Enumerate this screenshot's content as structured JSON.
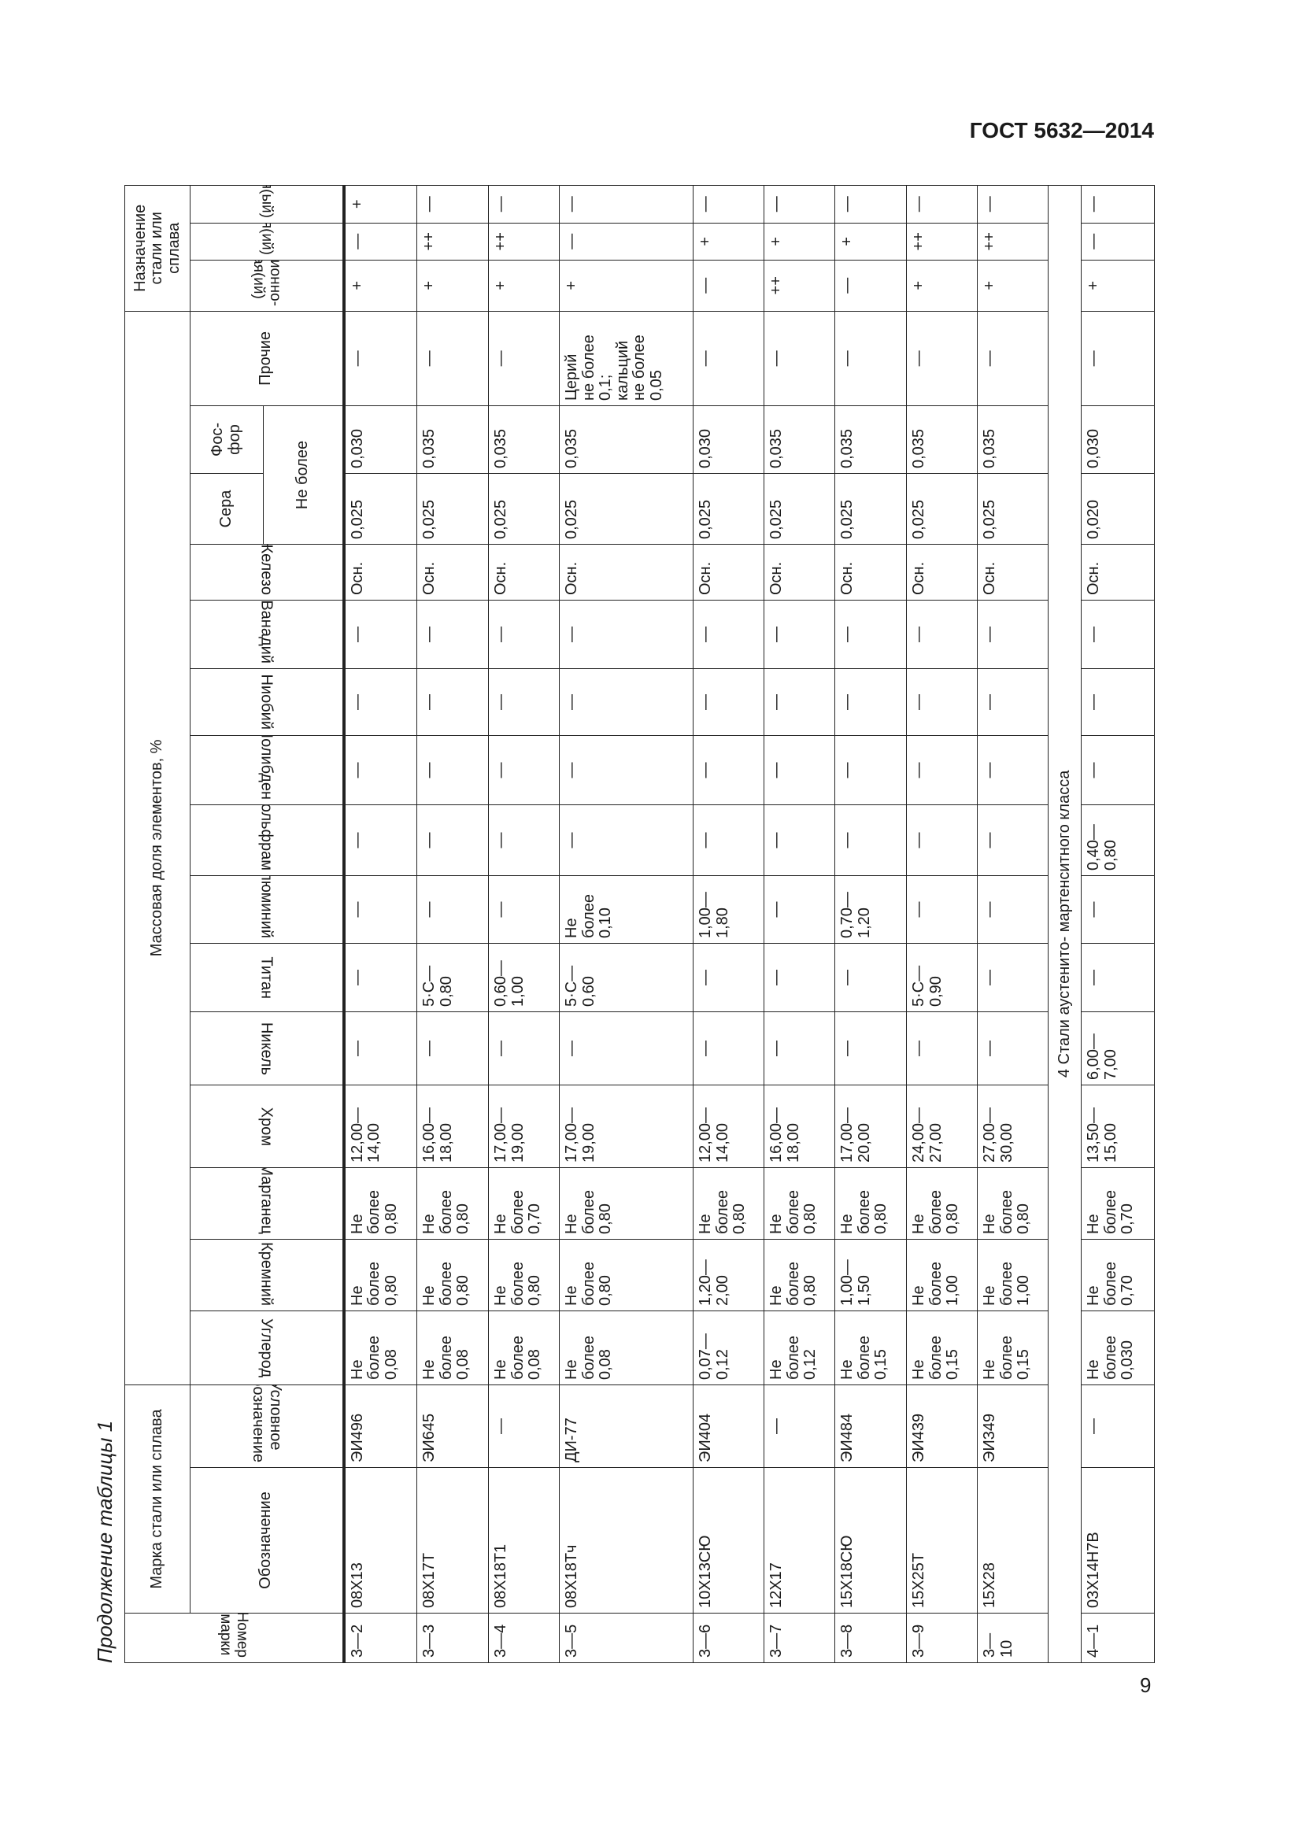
{
  "header": {
    "doc_title": "ГОСТ 5632—2014",
    "page_number": "9",
    "caption": "Продолжение таблицы 1"
  },
  "table": {
    "group_headers": {
      "number": "Номер марки",
      "grade": "Марка стали или сплава",
      "mass_fraction": "Массовая доля элементов, %",
      "purpose": "Назначение стали или сплава"
    },
    "columns": {
      "designation": "Обозначение",
      "conventional": "Условное\nобозначение",
      "carbon": "Углерод",
      "silicon": "Кремний",
      "manganese": "Марганец",
      "chromium": "Хром",
      "nickel": "Никель",
      "titanium": "Титан",
      "aluminium": "Алюминий",
      "tungsten": "Вольфрам",
      "molybdenum": "Молибден",
      "niobium": "Ниобий",
      "vanadium": "Ванадий",
      "iron": "Железо",
      "sulfur": "Сера",
      "phosphorus": "Фос-\nфор",
      "max_note": "Не более",
      "other": "Прочие",
      "corrosion": "Коррозионно-\nстойкая(ий)",
      "heat_resistant": "Жаростойкая(ий)",
      "heat_proof": "Жаропрочная(ый)"
    },
    "rows_class3": [
      [
        "3—2",
        "08Х13",
        "ЭИ496",
        "Не\nболее\n0,08",
        "Не\nболее\n0,80",
        "Не\nболее\n0,80",
        "12,00—\n14,00",
        "—",
        "—",
        "—",
        "—",
        "—",
        "—",
        "—",
        "Осн.",
        "0,025",
        "0,030",
        "—",
        "+",
        "—",
        "+"
      ],
      [
        "3—3",
        "08Х17Т",
        "ЭИ645",
        "Не\nболее\n0,08",
        "Не\nболее\n0,80",
        "Не\nболее\n0,80",
        "16,00—\n18,00",
        "—",
        "5·С—\n0,80",
        "—",
        "—",
        "—",
        "—",
        "—",
        "Осн.",
        "0,025",
        "0,035",
        "—",
        "+",
        "++",
        "—"
      ],
      [
        "3—4",
        "08Х18Т1",
        "—",
        "Не\nболее\n0,08",
        "Не\nболее\n0,80",
        "Не\nболее\n0,70",
        "17,00—\n19,00",
        "—",
        "0,60—\n1,00",
        "—",
        "—",
        "—",
        "—",
        "—",
        "Осн.",
        "0,025",
        "0,035",
        "—",
        "+",
        "++",
        "—"
      ],
      [
        "3—5",
        "08Х18Тч",
        "ДИ-77",
        "Не\nболее\n0,08",
        "Не\nболее\n0,80",
        "Не\nболее\n0,80",
        "17,00—\n19,00",
        "—",
        "5·С—\n0,60",
        "Не\nболее\n0,10",
        "—",
        "—",
        "—",
        "—",
        "Осн.",
        "0,025",
        "0,035",
        "Церий\nне более\n0,1;\nкальций\nне более\n0,05",
        "+",
        "—",
        "—"
      ],
      [
        "3—6",
        "10Х13СЮ",
        "ЭИ404",
        "0,07—\n0,12",
        "1,20—\n2,00",
        "Не\nболее\n0,80",
        "12,00—\n14,00",
        "—",
        "—",
        "1,00—\n1,80",
        "—",
        "—",
        "—",
        "—",
        "Осн.",
        "0,025",
        "0,030",
        "—",
        "—",
        "+",
        "—"
      ],
      [
        "3—7",
        "12Х17",
        "—",
        "Не\nболее\n0,12",
        "Не\nболее\n0,80",
        "Не\nболее\n0,80",
        "16,00—\n18,00",
        "—",
        "—",
        "—",
        "—",
        "—",
        "—",
        "—",
        "Осн.",
        "0,025",
        "0,035",
        "—",
        "++",
        "+",
        "—"
      ],
      [
        "3—8",
        "15Х18СЮ",
        "ЭИ484",
        "Не\nболее\n0,15",
        "1,00—\n1,50",
        "Не\nболее\n0,80",
        "17,00—\n20,00",
        "—",
        "—",
        "0,70—\n1,20",
        "—",
        "—",
        "—",
        "—",
        "Осн.",
        "0,025",
        "0,035",
        "—",
        "—",
        "+",
        "—"
      ],
      [
        "3—9",
        "15Х25Т",
        "ЭИ439",
        "Не\nболее\n0,15",
        "Не\nболее\n1,00",
        "Не\nболее\n0,80",
        "24,00—\n27,00",
        "—",
        "5·С—\n0,90",
        "—",
        "—",
        "—",
        "—",
        "—",
        "Осн.",
        "0,025",
        "0,035",
        "—",
        "+",
        "++",
        "—"
      ],
      [
        "3—10",
        "15Х28",
        "ЭИ349",
        "Не\nболее\n0,15",
        "Не\nболее\n1,00",
        "Не\nболее\n0,80",
        "27,00—\n30,00",
        "—",
        "—",
        "—",
        "—",
        "—",
        "—",
        "—",
        "Осн.",
        "0,025",
        "0,035",
        "—",
        "+",
        "++",
        "—"
      ]
    ],
    "section_4_title": "4 Стали аустенито- мартенситного класса",
    "rows_class4": [
      [
        "4—1",
        "03Х14Н7В",
        "—",
        "Не\nболее\n0,030",
        "Не\nболее\n0,70",
        "Не\nболее\n0,70",
        "13,50—\n15,00",
        "6,00—\n7,00",
        "—",
        "—",
        "0,40—\n0,80",
        "—",
        "—",
        "—",
        "Осн.",
        "0,020",
        "0,030",
        "—",
        "+",
        "—",
        "—"
      ]
    ]
  }
}
